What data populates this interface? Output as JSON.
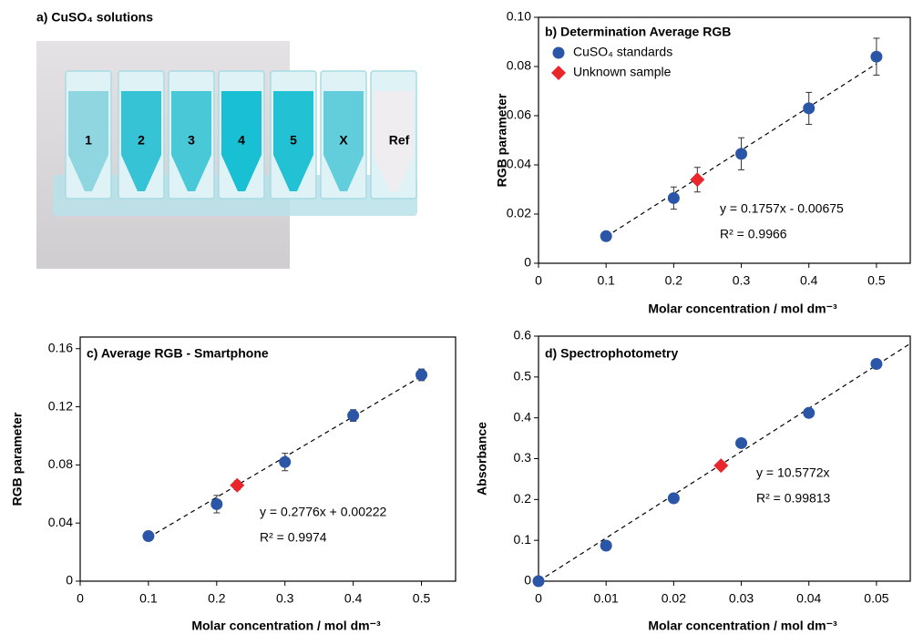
{
  "photo": {
    "title": "a) CuSO₄ solutions",
    "labels": [
      "1",
      "2",
      "3",
      "4",
      "5",
      "X",
      "Ref"
    ]
  },
  "chart_data": [
    {
      "type": "scatter",
      "title": "b) Determination Average RGB",
      "x_label": "Molar concentration / mol dm⁻³",
      "y_label": "RGB parameter",
      "xlim": [
        0,
        0.55
      ],
      "ylim": [
        0,
        0.1
      ],
      "xticks": [
        0,
        0.1,
        0.2,
        0.3,
        0.4,
        0.5
      ],
      "yticks": [
        0,
        0.02,
        0.04,
        0.06,
        0.08,
        {
          "value": 0.1,
          "label": "0.10"
        }
      ],
      "legend": "upper left",
      "series": [
        {
          "name": "CuSO₄ standards",
          "color": "#2b55a6",
          "marker": "circle",
          "x": [
            0.1,
            0.2,
            0.3,
            0.4,
            0.5
          ],
          "values": [
            0.011,
            0.0265,
            0.0445,
            0.063,
            0.084
          ],
          "errors": [
            0.001,
            0.0045,
            0.0065,
            0.0065,
            0.0075
          ]
        },
        {
          "name": "Unknown sample",
          "color": "#e8262b",
          "marker": "diamond",
          "x": [
            0.235
          ],
          "values": [
            0.034
          ],
          "errors": [
            0.005
          ]
        }
      ],
      "fit": {
        "x": [
          0.1,
          0.5
        ],
        "values": [
          0.0108,
          0.0811
        ]
      },
      "annotations": [
        "y = 0.1757x - 0.00675",
        "R² = 0.9966"
      ]
    },
    {
      "type": "scatter",
      "title": "c) Average RGB - Smartphone",
      "x_label": "Molar concentration / mol dm⁻³",
      "y_label": "RGB parameter",
      "xlim": [
        0,
        0.55
      ],
      "ylim": [
        0,
        0.168
      ],
      "xticks": [
        0,
        0.1,
        0.2,
        0.3,
        0.4,
        0.5
      ],
      "yticks": [
        0,
        0.04,
        0.08,
        0.12,
        0.16
      ],
      "series": [
        {
          "color": "#2b55a6",
          "marker": "circle",
          "x": [
            0.1,
            0.2,
            0.3,
            0.4,
            0.5
          ],
          "values": [
            0.031,
            0.053,
            0.082,
            0.114,
            0.142
          ],
          "errors": [
            0.001,
            0.006,
            0.006,
            0.004,
            0.004
          ]
        },
        {
          "color": "#e8262b",
          "marker": "diamond",
          "x": [
            0.23
          ],
          "values": [
            0.066
          ],
          "errors": [
            0.003
          ]
        }
      ],
      "fit": {
        "x": [
          0.1,
          0.5
        ],
        "values": [
          0.03,
          0.141
        ]
      },
      "annotations": [
        "y = 0.2776x + 0.00222",
        "R² = 0.9974"
      ]
    },
    {
      "type": "scatter",
      "title": "d) Spectrophotometry",
      "x_label": "Molar concentration / mol dm⁻³",
      "y_label": "Absorbance",
      "xlim": [
        0,
        0.055
      ],
      "ylim": [
        0,
        0.6
      ],
      "xticks": [
        0,
        0.01,
        0.02,
        0.03,
        0.04,
        0.05
      ],
      "yticks": [
        0,
        0.1,
        0.2,
        0.3,
        0.4,
        0.5,
        0.6
      ],
      "series": [
        {
          "color": "#2b55a6",
          "marker": "circle",
          "x": [
            0,
            0.01,
            0.02,
            0.03,
            0.04,
            0.05
          ],
          "values": [
            0,
            0.087,
            0.203,
            0.338,
            0.412,
            0.532
          ]
        },
        {
          "color": "#e8262b",
          "marker": "diamond",
          "x": [
            0.027
          ],
          "values": [
            0.283
          ]
        }
      ],
      "fit": {
        "x": [
          0,
          0.055
        ],
        "values": [
          0,
          0.5817
        ]
      },
      "annotations": [
        "y = 10.5772x",
        "R² = 0.99813"
      ]
    }
  ]
}
